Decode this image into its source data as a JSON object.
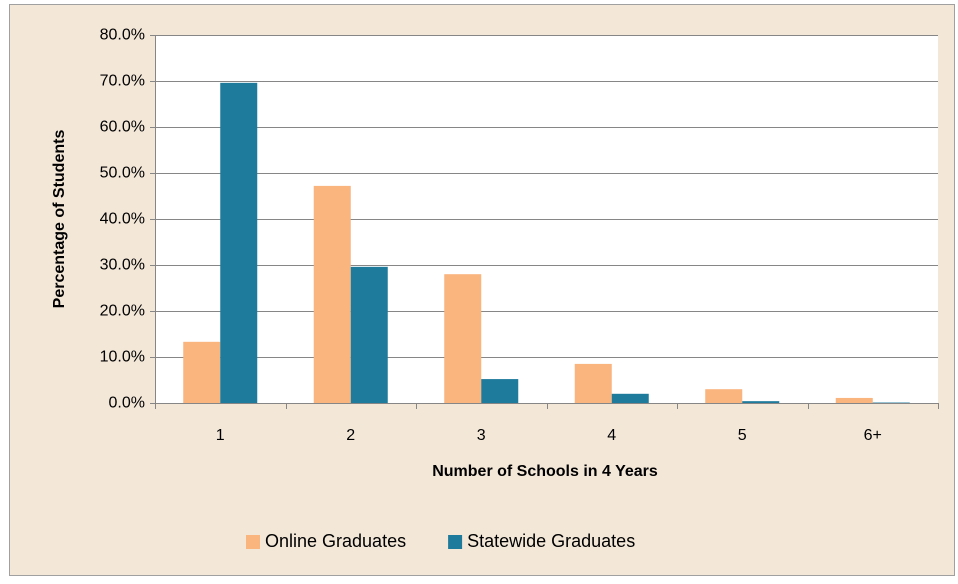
{
  "chart_data": {
    "type": "bar",
    "x_label": "Number of Schools in 4 Years",
    "y_label": "Percentage of Students",
    "categories": [
      "1",
      "2",
      "3",
      "4",
      "5",
      "6+"
    ],
    "series": [
      {
        "name": "Online Graduates",
        "color": "#fab47e",
        "values": [
          13.3,
          47.2,
          28.0,
          8.5,
          3.0,
          1.1
        ]
      },
      {
        "name": "Statewide Graduates",
        "color": "#1e7b9c",
        "values": [
          69.6,
          29.6,
          5.2,
          2.0,
          0.4,
          0.1
        ]
      }
    ],
    "ylim": [
      0,
      80
    ],
    "yticks": [
      {
        "value": 0,
        "label": "0.0%"
      },
      {
        "value": 10,
        "label": "10.0%"
      },
      {
        "value": 20,
        "label": "20.0%"
      },
      {
        "value": 30,
        "label": "30.0%"
      },
      {
        "value": 40,
        "label": "40.0%"
      },
      {
        "value": 50,
        "label": "50.0%"
      },
      {
        "value": 60,
        "label": "60.0%"
      },
      {
        "value": 70,
        "label": "70.0%"
      },
      {
        "value": 80,
        "label": "80.0%"
      }
    ],
    "grid": true,
    "legend": "bottom"
  }
}
